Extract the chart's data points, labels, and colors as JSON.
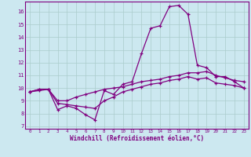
{
  "xlabel": "Windchill (Refroidissement éolien,°C)",
  "bg_color": "#cce8f0",
  "line_color": "#800080",
  "grid_color": "#aacccc",
  "xticks": [
    0,
    1,
    2,
    3,
    4,
    5,
    6,
    7,
    8,
    9,
    10,
    11,
    12,
    13,
    14,
    15,
    16,
    17,
    18,
    19,
    20,
    21,
    22,
    23
  ],
  "yticks": [
    7,
    8,
    9,
    10,
    11,
    12,
    13,
    14,
    15,
    16
  ],
  "ylim": [
    6.8,
    16.8
  ],
  "xlim": [
    -0.5,
    23.5
  ],
  "series": [
    [
      9.7,
      9.9,
      9.9,
      8.3,
      8.6,
      8.4,
      7.9,
      7.5,
      9.8,
      9.5,
      10.3,
      10.5,
      12.7,
      14.7,
      14.9,
      16.4,
      16.5,
      15.8,
      11.8,
      11.6,
      10.9,
      10.9,
      10.5,
      10.0
    ],
    [
      9.7,
      9.9,
      9.9,
      9.0,
      9.0,
      9.3,
      9.5,
      9.7,
      9.9,
      10.0,
      10.1,
      10.3,
      10.5,
      10.6,
      10.7,
      10.9,
      11.0,
      11.2,
      11.2,
      11.3,
      11.0,
      10.8,
      10.6,
      10.5
    ],
    [
      9.7,
      9.8,
      9.9,
      8.8,
      8.7,
      8.6,
      8.5,
      8.4,
      9.0,
      9.3,
      9.7,
      9.9,
      10.1,
      10.3,
      10.4,
      10.6,
      10.7,
      10.9,
      10.7,
      10.8,
      10.4,
      10.3,
      10.2,
      10.0
    ]
  ]
}
